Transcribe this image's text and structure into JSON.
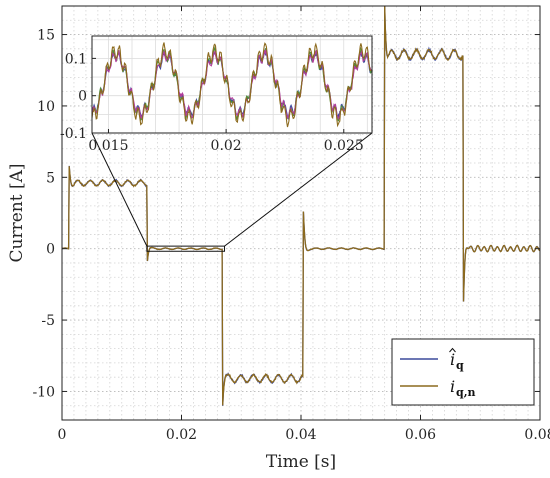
{
  "chart_data": [
    {
      "type": "line",
      "title": "",
      "xlabel": "Time [s]",
      "ylabel": "Current [A]",
      "xlim": [
        0,
        0.08
      ],
      "ylim": [
        -12,
        17
      ],
      "xticks": [
        0,
        0.02,
        0.04,
        0.06,
        0.08
      ],
      "xtick_labels": [
        "0",
        "0.02",
        "0.04",
        "0.06",
        "0.08"
      ],
      "yticks": [
        -10,
        -5,
        0,
        5,
        10,
        15
      ],
      "ytick_labels": [
        "-10",
        "-5",
        "0",
        "5",
        "10",
        "15"
      ],
      "grid": "dotted major and minor",
      "legend_position": "bottom-right",
      "series": [
        {
          "name": "î_q",
          "color": "#3b4a9c",
          "steps": [
            {
              "t": 0.0012,
              "value": 4.6
            },
            {
              "t": 0.0142,
              "value": 0.0
            },
            {
              "t": 0.0268,
              "value": -9.1
            },
            {
              "t": 0.0404,
              "value": 0.0
            },
            {
              "t": 0.054,
              "value": 13.6
            },
            {
              "t": 0.0672,
              "value": 0.0
            }
          ]
        },
        {
          "name": "i_q,n",
          "color": "#8c6a1e",
          "steps": [
            {
              "t": 0.0012,
              "value": 4.6
            },
            {
              "t": 0.0142,
              "value": 0.0
            },
            {
              "t": 0.0268,
              "value": -9.1
            },
            {
              "t": 0.0404,
              "value": 0.0
            },
            {
              "t": 0.054,
              "value": 13.6
            },
            {
              "t": 0.0672,
              "value": 0.0
            }
          ]
        }
      ]
    },
    {
      "type": "line",
      "title": "",
      "role": "inset zoom of 0.014 to 0.026 s",
      "xlim": [
        0.0143,
        0.0262
      ],
      "ylim": [
        -0.1,
        0.16
      ],
      "xticks": [
        0.015,
        0.02,
        0.025
      ],
      "xtick_labels": [
        "0.015",
        "0.02",
        "0.025"
      ],
      "yticks": [
        -0.1,
        0,
        0.1
      ],
      "ytick_labels": [
        "-0.1",
        "0",
        "0.1"
      ],
      "grid": "on",
      "series": [
        {
          "name": "î_q",
          "color": "#3b4a9c",
          "shape": "periodic ripple, period about 0.0021 s, amplitude about 0.08 A"
        },
        {
          "name": "i_q,n",
          "color": "#8c6a1e",
          "shape": "periodic ripple, period about 0.0021 s, amplitude about 0.09 A"
        }
      ]
    }
  ],
  "legend": {
    "entries": [
      {
        "base": "i",
        "hat": true,
        "sub": "q",
        "color": "#3b4a9c"
      },
      {
        "base": "i",
        "hat": false,
        "sub": "q,n",
        "color": "#8c6a1e"
      }
    ]
  }
}
